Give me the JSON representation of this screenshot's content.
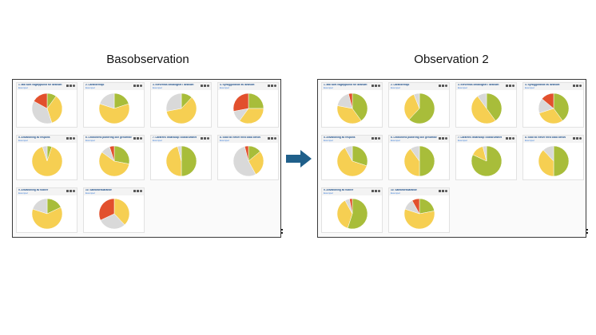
{
  "headings": {
    "left": "Basobservation",
    "right": "Observation 2"
  },
  "colors": {
    "yellow": "#f6cf52",
    "green": "#a8bd3a",
    "red": "#e2502d",
    "grey": "#d9d9d9",
    "arrow": "#1f5f8a"
  },
  "left_cards": [
    {
      "title": "1. Mål som vägleppunkt för lärandet",
      "sub": "Exempel",
      "slices": [
        {
          "c": "green",
          "v": 0.1
        },
        {
          "c": "yellow",
          "v": 0.35
        },
        {
          "c": "grey",
          "v": 0.38
        },
        {
          "c": "red",
          "v": 0.17
        }
      ]
    },
    {
      "title": "2. Lärandemiljö",
      "sub": "Exempel",
      "slices": [
        {
          "c": "green",
          "v": 0.2
        },
        {
          "c": "yellow",
          "v": 0.6
        },
        {
          "c": "grey",
          "v": 0.2
        }
      ]
    },
    {
      "title": "3. Elevernas delaktighet i lärandet",
      "sub": "Exempel",
      "slices": [
        {
          "c": "green",
          "v": 0.12
        },
        {
          "c": "yellow",
          "v": 0.6
        },
        {
          "c": "grey",
          "v": 0.28
        }
      ]
    },
    {
      "title": "4. Synliggörande av lärandet",
      "sub": "Exempel",
      "slices": [
        {
          "c": "green",
          "v": 0.25
        },
        {
          "c": "yellow",
          "v": 0.35
        },
        {
          "c": "grey",
          "v": 0.12
        },
        {
          "c": "red",
          "v": 0.28
        }
      ]
    },
    {
      "title": "5. Användning av respons",
      "sub": "Exempel",
      "slices": [
        {
          "c": "green",
          "v": 0.05
        },
        {
          "c": "yellow",
          "v": 0.9
        },
        {
          "c": "grey",
          "v": 0.05
        }
      ]
    },
    {
      "title": "6. Lektionens planering och genomförande",
      "sub": "Exempel",
      "slices": [
        {
          "c": "green",
          "v": 0.28
        },
        {
          "c": "yellow",
          "v": 0.57
        },
        {
          "c": "grey",
          "v": 0.1
        },
        {
          "c": "red",
          "v": 0.05
        }
      ]
    },
    {
      "title": "7. Lärarens ledarskap i klassrummet",
      "sub": "Exempel",
      "slices": [
        {
          "c": "green",
          "v": 0.5
        },
        {
          "c": "yellow",
          "v": 0.46
        },
        {
          "c": "grey",
          "v": 0.04
        }
      ]
    },
    {
      "title": "8. Stöd till elever med olika behov",
      "sub": "Exempel",
      "slices": [
        {
          "c": "green",
          "v": 0.14
        },
        {
          "c": "yellow",
          "v": 0.28
        },
        {
          "c": "grey",
          "v": 0.54
        },
        {
          "c": "red",
          "v": 0.04
        }
      ]
    },
    {
      "title": "9. Användning av rutiner",
      "sub": "Exempel",
      "slices": [
        {
          "c": "green",
          "v": 0.18
        },
        {
          "c": "yellow",
          "v": 0.62
        },
        {
          "c": "grey",
          "v": 0.2
        }
      ]
    },
    {
      "title": "10. Samarbetslärande",
      "sub": "Exempel",
      "slices": [
        {
          "c": "yellow",
          "v": 0.38
        },
        {
          "c": "grey",
          "v": 0.3
        },
        {
          "c": "red",
          "v": 0.32
        }
      ]
    }
  ],
  "right_cards": [
    {
      "title": "1. Mål som vägleppunkt för lärandet",
      "sub": "Exempel",
      "slices": [
        {
          "c": "green",
          "v": 0.4
        },
        {
          "c": "yellow",
          "v": 0.38
        },
        {
          "c": "grey",
          "v": 0.18
        },
        {
          "c": "red",
          "v": 0.04
        }
      ]
    },
    {
      "title": "2. Lärandemiljö",
      "sub": "Exempel",
      "slices": [
        {
          "c": "green",
          "v": 0.62
        },
        {
          "c": "yellow",
          "v": 0.32
        },
        {
          "c": "grey",
          "v": 0.06
        }
      ]
    },
    {
      "title": "3. Elevernas delaktighet i lärandet",
      "sub": "Exempel",
      "slices": [
        {
          "c": "green",
          "v": 0.4
        },
        {
          "c": "yellow",
          "v": 0.5
        },
        {
          "c": "grey",
          "v": 0.1
        }
      ]
    },
    {
      "title": "4. Synliggörande av lärandet",
      "sub": "Exempel",
      "slices": [
        {
          "c": "green",
          "v": 0.4
        },
        {
          "c": "yellow",
          "v": 0.3
        },
        {
          "c": "grey",
          "v": 0.16
        },
        {
          "c": "red",
          "v": 0.14
        }
      ]
    },
    {
      "title": "5. Användning av respons",
      "sub": "Exempel",
      "slices": [
        {
          "c": "green",
          "v": 0.3
        },
        {
          "c": "yellow",
          "v": 0.62
        },
        {
          "c": "grey",
          "v": 0.08
        }
      ]
    },
    {
      "title": "6. Lektionens planering och genomförande",
      "sub": "Exempel",
      "slices": [
        {
          "c": "green",
          "v": 0.5
        },
        {
          "c": "yellow",
          "v": 0.4
        },
        {
          "c": "grey",
          "v": 0.1
        }
      ]
    },
    {
      "title": "7. Lärarens ledarskap i klassrummet",
      "sub": "Exempel",
      "slices": [
        {
          "c": "green",
          "v": 0.82
        },
        {
          "c": "yellow",
          "v": 0.14
        },
        {
          "c": "grey",
          "v": 0.04
        }
      ]
    },
    {
      "title": "8. Stöd till elever med olika behov",
      "sub": "Exempel",
      "slices": [
        {
          "c": "green",
          "v": 0.5
        },
        {
          "c": "yellow",
          "v": 0.38
        },
        {
          "c": "grey",
          "v": 0.12
        }
      ]
    },
    {
      "title": "9. Användning av rutiner",
      "sub": "Exempel",
      "slices": [
        {
          "c": "green",
          "v": 0.55
        },
        {
          "c": "yellow",
          "v": 0.37
        },
        {
          "c": "grey",
          "v": 0.05
        },
        {
          "c": "red",
          "v": 0.03
        }
      ]
    },
    {
      "title": "10. Samarbetslärande",
      "sub": "Exempel",
      "slices": [
        {
          "c": "green",
          "v": 0.22
        },
        {
          "c": "yellow",
          "v": 0.58
        },
        {
          "c": "grey",
          "v": 0.12
        },
        {
          "c": "red",
          "v": 0.08
        }
      ]
    }
  ]
}
